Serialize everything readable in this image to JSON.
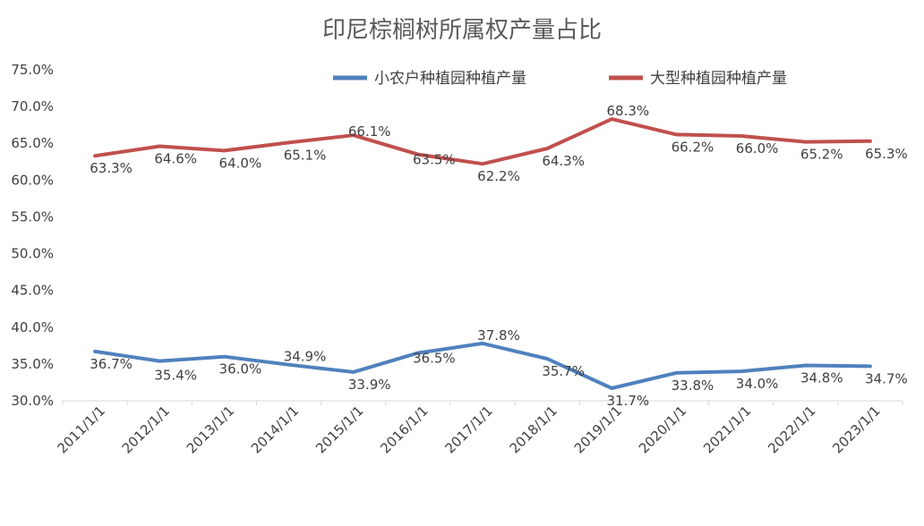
{
  "chart_data": {
    "type": "line",
    "title": "印尼棕榈树所属权产量占比",
    "xlabel": "",
    "ylabel": "",
    "ylim": [
      30,
      75
    ],
    "ytick_step": 5,
    "y_tick_labels": [
      "30.0%",
      "35.0%",
      "40.0%",
      "45.0%",
      "50.0%",
      "55.0%",
      "60.0%",
      "65.0%",
      "70.0%",
      "75.0%"
    ],
    "grid": false,
    "legend_position": "top",
    "categories": [
      "2011/1/1",
      "2012/1/1",
      "2013/1/1",
      "2014/1/1",
      "2015/1/1",
      "2016/1/1",
      "2017/1/1",
      "2018/1/1",
      "2019/1/1",
      "2020/1/1",
      "2021/1/1",
      "2022/1/1",
      "2023/1/1"
    ],
    "series": [
      {
        "name": "小农户种植园种植产量",
        "color": "#4F81BD",
        "values": [
          36.7,
          35.4,
          36.0,
          34.9,
          33.9,
          36.5,
          37.8,
          35.7,
          31.7,
          33.8,
          34.0,
          34.8,
          34.7
        ],
        "labels": [
          "36.7%",
          "35.4%",
          "36.0%",
          "34.9%",
          "33.9%",
          "36.5%",
          "37.8%",
          "35.7%",
          "31.7%",
          "33.8%",
          "34.0%",
          "34.8%",
          "34.7%"
        ]
      },
      {
        "name": "大型种植园种植产量",
        "color": "#C0504D",
        "values": [
          63.3,
          64.6,
          64.0,
          65.1,
          66.1,
          63.5,
          62.2,
          64.3,
          68.3,
          66.2,
          66.0,
          65.2,
          65.3
        ],
        "labels": [
          "63.3%",
          "64.6%",
          "64.0%",
          "65.1%",
          "66.1%",
          "63.5%",
          "62.2%",
          "64.3%",
          "68.3%",
          "66.2%",
          "66.0%",
          "65.2%",
          "65.3%"
        ]
      }
    ]
  }
}
